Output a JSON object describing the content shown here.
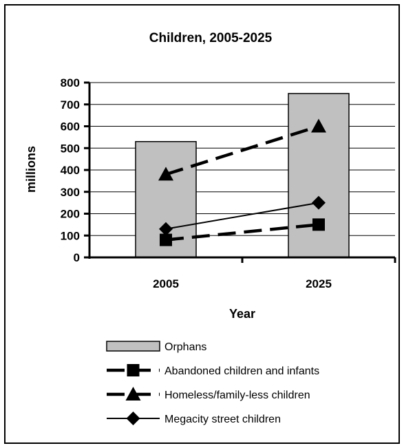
{
  "chart_data": {
    "type": "bar",
    "title": "Children, 2005-2025",
    "xlabel": "Year",
    "ylabel": "millions",
    "categories": [
      "2005",
      "2025"
    ],
    "ylim": [
      0,
      800
    ],
    "yticks": [
      "0",
      "100",
      "200",
      "300",
      "400",
      "500",
      "600",
      "700",
      "800"
    ],
    "grid": true,
    "legend_position": "bottom",
    "series": [
      {
        "name": "Orphans",
        "kind": "bar",
        "values": [
          530,
          750
        ],
        "color": "#c0c0c0"
      },
      {
        "name": "Abandoned children and infants",
        "kind": "line",
        "style": "dashed",
        "marker": "square",
        "values": [
          80,
          150
        ],
        "color": "#000000"
      },
      {
        "name": "Homeless/family-less children",
        "kind": "line",
        "style": "dashed",
        "marker": "triangle",
        "values": [
          380,
          600
        ],
        "color": "#000000"
      },
      {
        "name": "Megacity street children",
        "kind": "line",
        "style": "solid",
        "marker": "diamond",
        "values": [
          130,
          250
        ],
        "color": "#000000"
      }
    ]
  }
}
